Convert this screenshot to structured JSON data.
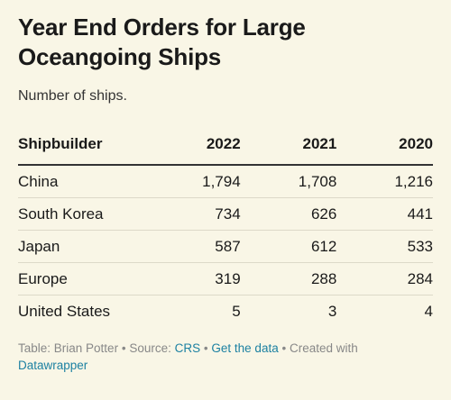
{
  "header": {
    "title": "Year End Orders for Large Oceangoing Ships",
    "subtitle": "Number of ships."
  },
  "table": {
    "columns": [
      "Shipbuilder",
      "2022",
      "2021",
      "2020"
    ],
    "rows": [
      [
        "China",
        "1,794",
        "1,708",
        "1,216"
      ],
      [
        "South Korea",
        "734",
        "626",
        "441"
      ],
      [
        "Japan",
        "587",
        "612",
        "533"
      ],
      [
        "Europe",
        "319",
        "288",
        "284"
      ],
      [
        "United States",
        "5",
        "3",
        "4"
      ]
    ]
  },
  "footer": {
    "credit": "Table: Brian Potter",
    "separator": "•",
    "source_label": "Source:",
    "source": "CRS",
    "get_data": "Get the data",
    "created_with": "Created with",
    "tool": "Datawrapper"
  }
}
